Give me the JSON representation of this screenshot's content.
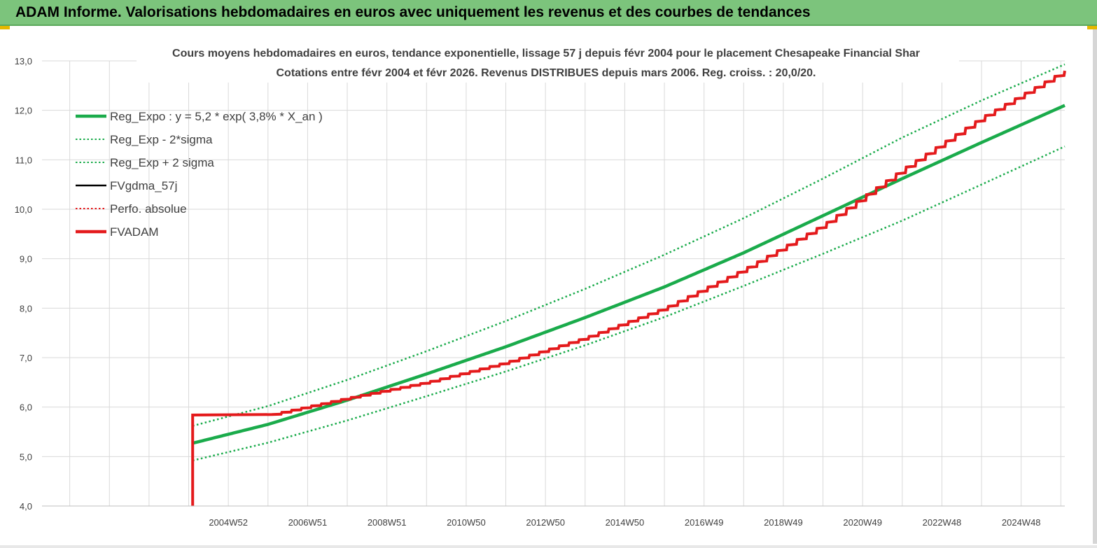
{
  "header": {
    "title": "ADAM Informe. Valorisations hebdomadaires en euros avec uniquement les revenus et des courbes de tendances"
  },
  "chart_data": {
    "type": "line",
    "title_line1": "Cours moyens hebdomadaires en euros, tendance exponentielle, lissage 57 j depuis févr 2004 pour le placement Chesapeake Financial Shar",
    "title_line2": "Cotations entre févr 2004 et févr 2026. Revenus DISTRIBUES depuis mars 2006. Reg. croiss. : 20,0/20.",
    "ylim": [
      4.0,
      13.0
    ],
    "y_ticks": [
      "4,0",
      "5,0",
      "6,0",
      "7,0",
      "8,0",
      "9,0",
      "10,0",
      "11,0",
      "12,0",
      "13,0"
    ],
    "x_range": [
      2000.3,
      2026.1
    ],
    "x_ticks": [
      {
        "label": "2004W52",
        "year": 2005.0
      },
      {
        "label": "2006W51",
        "year": 2007.0
      },
      {
        "label": "2008W51",
        "year": 2009.0
      },
      {
        "label": "2010W50",
        "year": 2011.0
      },
      {
        "label": "2012W50",
        "year": 2013.0
      },
      {
        "label": "2014W50",
        "year": 2015.0
      },
      {
        "label": "2016W49",
        "year": 2017.0
      },
      {
        "label": "2018W49",
        "year": 2019.0
      },
      {
        "label": "2020W49",
        "year": 2021.0
      },
      {
        "label": "2022W48",
        "year": 2023.0
      },
      {
        "label": "2024W48",
        "year": 2025.0
      }
    ],
    "grid": true,
    "legend_position": "top-left",
    "legend": [
      {
        "name": "Reg_Expo : y = 5,2 * exp( 3,8% *  X_an )",
        "color": "#1aab4b",
        "style": "solid-thick"
      },
      {
        "name": "Reg_Exp - 2*sigma",
        "color": "#1aab4b",
        "style": "dotted"
      },
      {
        "name": "Reg_Exp + 2 sigma",
        "color": "#1aab4b",
        "style": "dotted"
      },
      {
        "name": "FVgdma_57j",
        "color": "#000000",
        "style": "solid"
      },
      {
        "name": "Perfo. absolue",
        "color": "#e41a1c",
        "style": "dotted"
      },
      {
        "name": "FVADAM",
        "color": "#e41a1c",
        "style": "solid-thick"
      }
    ],
    "series": [
      {
        "name": "Reg_Expo : y = 5,2 * exp( 3,8% *  X_an )",
        "x": [
          2004.1,
          2006.0,
          2008.0,
          2010.0,
          2012.0,
          2014.0,
          2016.0,
          2018.0,
          2020.0,
          2022.0,
          2024.0,
          2026.1
        ],
        "y": [
          5.27,
          5.65,
          6.14,
          6.67,
          7.22,
          7.81,
          8.43,
          9.12,
          9.87,
          10.62,
          11.35,
          12.1
        ]
      },
      {
        "name": "Reg_Exp - 2*sigma",
        "x": [
          2004.1,
          2006.0,
          2008.0,
          2010.0,
          2012.0,
          2014.0,
          2016.0,
          2018.0,
          2020.0,
          2022.0,
          2024.0,
          2026.1
        ],
        "y": [
          4.92,
          5.28,
          5.73,
          6.22,
          6.72,
          7.25,
          7.82,
          8.45,
          9.1,
          9.77,
          10.5,
          11.27
        ]
      },
      {
        "name": "Reg_Exp + 2 sigma",
        "x": [
          2004.1,
          2006.0,
          2008.0,
          2010.0,
          2012.0,
          2014.0,
          2016.0,
          2018.0,
          2020.0,
          2022.0,
          2024.0,
          2026.1
        ],
        "y": [
          5.62,
          6.02,
          6.55,
          7.13,
          7.74,
          8.39,
          9.08,
          9.82,
          10.62,
          11.45,
          12.2,
          12.93
        ]
      },
      {
        "name": "FVADAM",
        "x": [
          2004.1,
          2004.1,
          2006.1,
          2008.0,
          2010.0,
          2012.0,
          2014.0,
          2016.0,
          2018.0,
          2020.0,
          2022.0,
          2024.0,
          2026.1
        ],
        "y": [
          4.0,
          5.84,
          5.85,
          6.18,
          6.5,
          6.9,
          7.4,
          8.0,
          8.78,
          9.68,
          10.8,
          11.85,
          12.8
        ]
      }
    ]
  }
}
